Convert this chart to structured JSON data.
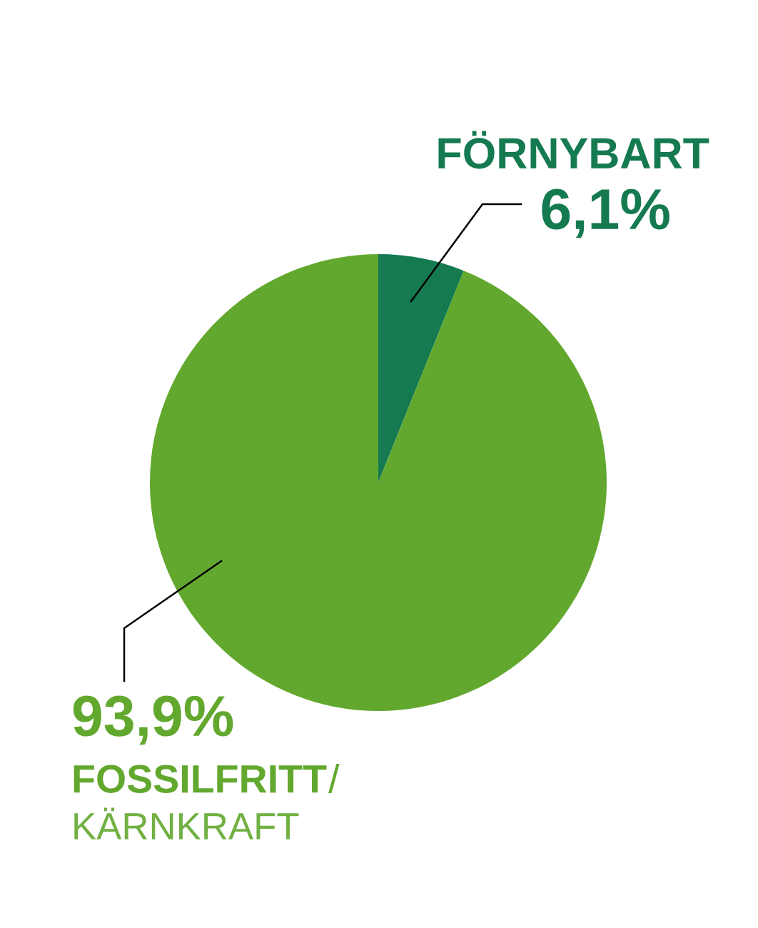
{
  "chart_data": {
    "type": "pie",
    "categories": [
      "FÖRNYBART",
      "FOSSILFRITT/KÄRNKRAFT"
    ],
    "values": [
      6.1,
      93.9
    ],
    "value_labels": [
      "6,1%",
      "93,9%"
    ],
    "colors": [
      "#157a50",
      "#62a82e"
    ],
    "legend": false
  }
}
